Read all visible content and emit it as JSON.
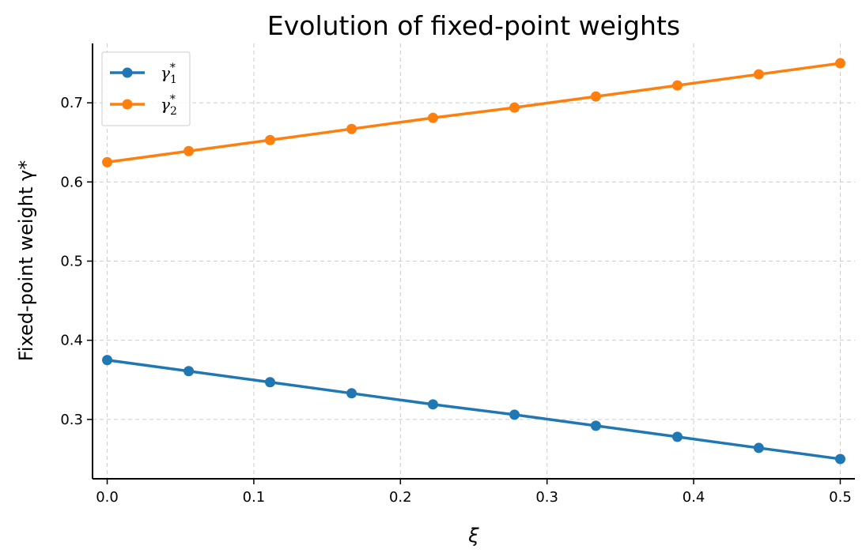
{
  "chart_data": {
    "type": "line",
    "title": "Evolution of fixed-point weights",
    "xlabel": "ξ",
    "ylabel": "Fixed-point weight γ*",
    "xlim": [
      -0.01,
      0.51
    ],
    "ylim": [
      0.225,
      0.775
    ],
    "xticks": [
      0.0,
      0.1,
      0.2,
      0.3,
      0.4,
      0.5
    ],
    "xtick_labels": [
      "0.0",
      "0.1",
      "0.2",
      "0.3",
      "0.4",
      "0.5"
    ],
    "yticks": [
      0.3,
      0.4,
      0.5,
      0.6,
      0.7
    ],
    "ytick_labels": [
      "0.3",
      "0.4",
      "0.5",
      "0.6",
      "0.7"
    ],
    "grid": true,
    "legend_position": "top-left",
    "x": [
      0.0,
      0.0556,
      0.1111,
      0.1667,
      0.2222,
      0.2778,
      0.3333,
      0.3889,
      0.4444,
      0.5
    ],
    "series": [
      {
        "name": "γ1*",
        "color": "#1f77b4",
        "values": [
          0.375,
          0.361,
          0.347,
          0.333,
          0.319,
          0.306,
          0.292,
          0.278,
          0.264,
          0.25
        ]
      },
      {
        "name": "γ2*",
        "color": "#ff7f0e",
        "values": [
          0.625,
          0.639,
          0.653,
          0.667,
          0.681,
          0.694,
          0.708,
          0.722,
          0.736,
          0.75
        ]
      }
    ]
  }
}
